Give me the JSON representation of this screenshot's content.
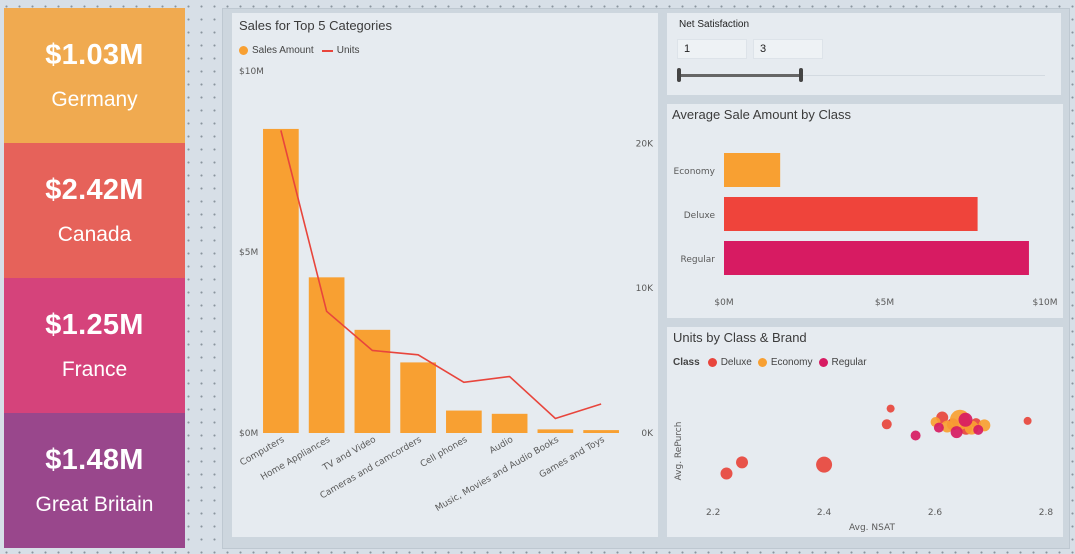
{
  "kpis": [
    {
      "value": "$1.03M",
      "label": "Germany",
      "color": "#f0aa50"
    },
    {
      "value": "$2.42M",
      "label": "Canada",
      "color": "#e6625a"
    },
    {
      "value": "$1.25M",
      "label": "France",
      "color": "#d5437b"
    },
    {
      "value": "$1.48M",
      "label": "Great Britain",
      "color": "#99478c"
    }
  ],
  "slicer": {
    "title": "Net Satisfaction",
    "min_value": "1",
    "max_value": "3"
  },
  "sales_chart": {
    "title": "Sales for Top 5 Categories",
    "legend": {
      "bar": "Sales Amount",
      "line": "Units"
    },
    "left_ticks": [
      "$10M",
      "$5M",
      "$0M"
    ],
    "right_ticks": [
      "20K",
      "10K",
      "0K"
    ]
  },
  "avg_chart": {
    "title": "Average Sale Amount by Class",
    "x_ticks": [
      "$0M",
      "$5M",
      "$10M"
    ]
  },
  "units_chart": {
    "title": "Units by Class & Brand",
    "legend_title": "Class",
    "legend_items": [
      "Deluxe",
      "Economy",
      "Regular"
    ],
    "x_label": "Avg. NSAT",
    "y_label": "Avg. RePurch",
    "x_ticks": [
      "2.2",
      "2.4",
      "2.6",
      "2.8"
    ]
  },
  "chart_data": [
    {
      "type": "bar",
      "title": "Sales for Top 5 Categories",
      "categories": [
        "Computers",
        "Home Appliances",
        "TV and Video",
        "Cameras and camcorders",
        "Cell phones",
        "Audio",
        "Music, Movies and Audio Books",
        "Games and Toys"
      ],
      "series": [
        {
          "name": "Sales Amount",
          "type": "bar",
          "axis": "left",
          "values": [
            8.4,
            4.3,
            2.85,
            1.95,
            0.62,
            0.53,
            0.1,
            0.08
          ],
          "color": "#f8a032"
        },
        {
          "name": "Units",
          "type": "line",
          "axis": "right",
          "values": [
            20900,
            8400,
            5700,
            5400,
            3500,
            3900,
            1000,
            2000
          ],
          "color": "#e8453c"
        }
      ],
      "ylim_left": [
        0,
        10
      ],
      "ylim_right": [
        0,
        25000
      ]
    },
    {
      "type": "bar",
      "orientation": "horizontal",
      "title": "Average Sale Amount by Class",
      "categories": [
        "Economy",
        "Deluxe",
        "Regular"
      ],
      "values": [
        1.75,
        7.9,
        9.5
      ],
      "colors": [
        "#f8a032",
        "#ef443b",
        "#d71b62"
      ],
      "xlim": [
        0,
        10
      ]
    },
    {
      "type": "scatter",
      "title": "Units by Class & Brand",
      "xlabel": "Avg. NSAT",
      "ylabel": "Avg. RePurch",
      "xlim": [
        2.16,
        2.82
      ],
      "ylim": [
        0,
        1
      ],
      "series": [
        {
          "name": "Deluxe",
          "color": "#e8453c",
          "points": [
            {
              "x": 2.224,
              "y": 0.12,
              "size": 6
            },
            {
              "x": 2.252,
              "y": 0.22,
              "size": 6
            },
            {
              "x": 2.4,
              "y": 0.2,
              "size": 8
            },
            {
              "x": 2.52,
              "y": 0.7,
              "size": 4
            },
            {
              "x": 2.513,
              "y": 0.56,
              "size": 5
            },
            {
              "x": 2.767,
              "y": 0.59,
              "size": 4
            },
            {
              "x": 2.613,
              "y": 0.62,
              "size": 6
            },
            {
              "x": 2.632,
              "y": 0.56,
              "size": 6
            },
            {
              "x": 2.656,
              "y": 0.52,
              "size": 6
            },
            {
              "x": 2.674,
              "y": 0.57,
              "size": 5
            }
          ]
        },
        {
          "name": "Economy",
          "color": "#f8a032",
          "points": [
            {
              "x": 2.645,
              "y": 0.6,
              "size": 10
            },
            {
              "x": 2.622,
              "y": 0.54,
              "size": 6
            },
            {
              "x": 2.666,
              "y": 0.53,
              "size": 7
            },
            {
              "x": 2.689,
              "y": 0.55,
              "size": 6
            },
            {
              "x": 2.601,
              "y": 0.58,
              "size": 5
            }
          ]
        },
        {
          "name": "Regular",
          "color": "#d71b62",
          "points": [
            {
              "x": 2.565,
              "y": 0.46,
              "size": 5
            },
            {
              "x": 2.639,
              "y": 0.49,
              "size": 6
            },
            {
              "x": 2.655,
              "y": 0.6,
              "size": 7
            },
            {
              "x": 2.607,
              "y": 0.53,
              "size": 5
            },
            {
              "x": 2.678,
              "y": 0.51,
              "size": 5
            }
          ]
        }
      ]
    }
  ]
}
